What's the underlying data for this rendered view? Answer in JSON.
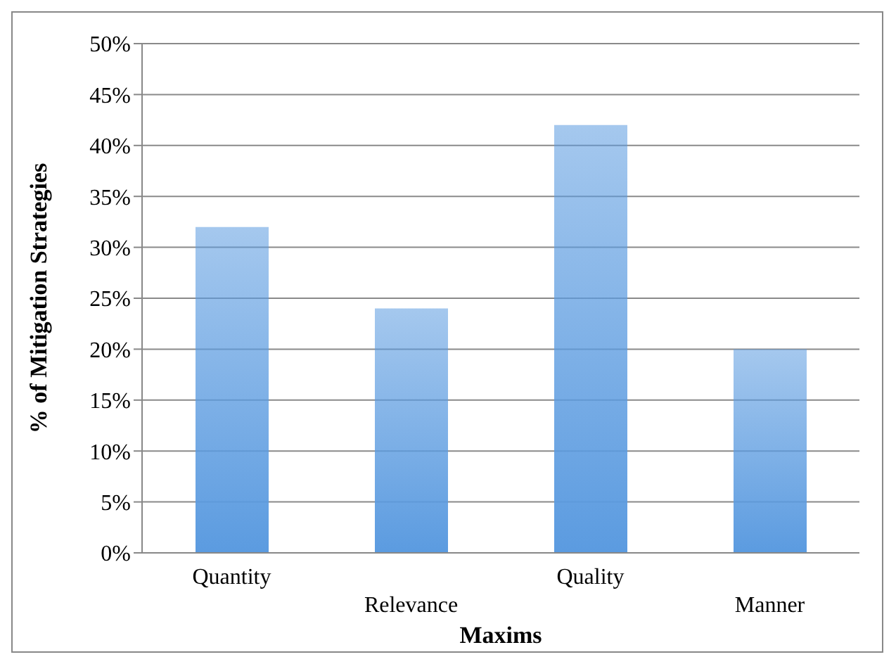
{
  "chart_data": {
    "type": "bar",
    "xlabel": "Maxims",
    "ylabel": "% of Mitigation Strategies",
    "categories": [
      "Quantity",
      "Relevance",
      "Quality",
      "Manner"
    ],
    "values": [
      32,
      24,
      42,
      20
    ],
    "color": "#5b9be0",
    "ylim": [
      0,
      50
    ],
    "yticks": [
      {
        "value": 0,
        "label": "0%"
      },
      {
        "value": 5,
        "label": "5%"
      },
      {
        "value": 10,
        "label": "10%"
      },
      {
        "value": 15,
        "label": "15%"
      },
      {
        "value": 20,
        "label": "20%"
      },
      {
        "value": 25,
        "label": "25%"
      },
      {
        "value": 30,
        "label": "30%"
      },
      {
        "value": 35,
        "label": "35%"
      },
      {
        "value": 40,
        "label": "40%"
      },
      {
        "value": 45,
        "label": "45%"
      },
      {
        "value": 50,
        "label": "50%"
      }
    ],
    "grid": "y",
    "legend": false
  }
}
